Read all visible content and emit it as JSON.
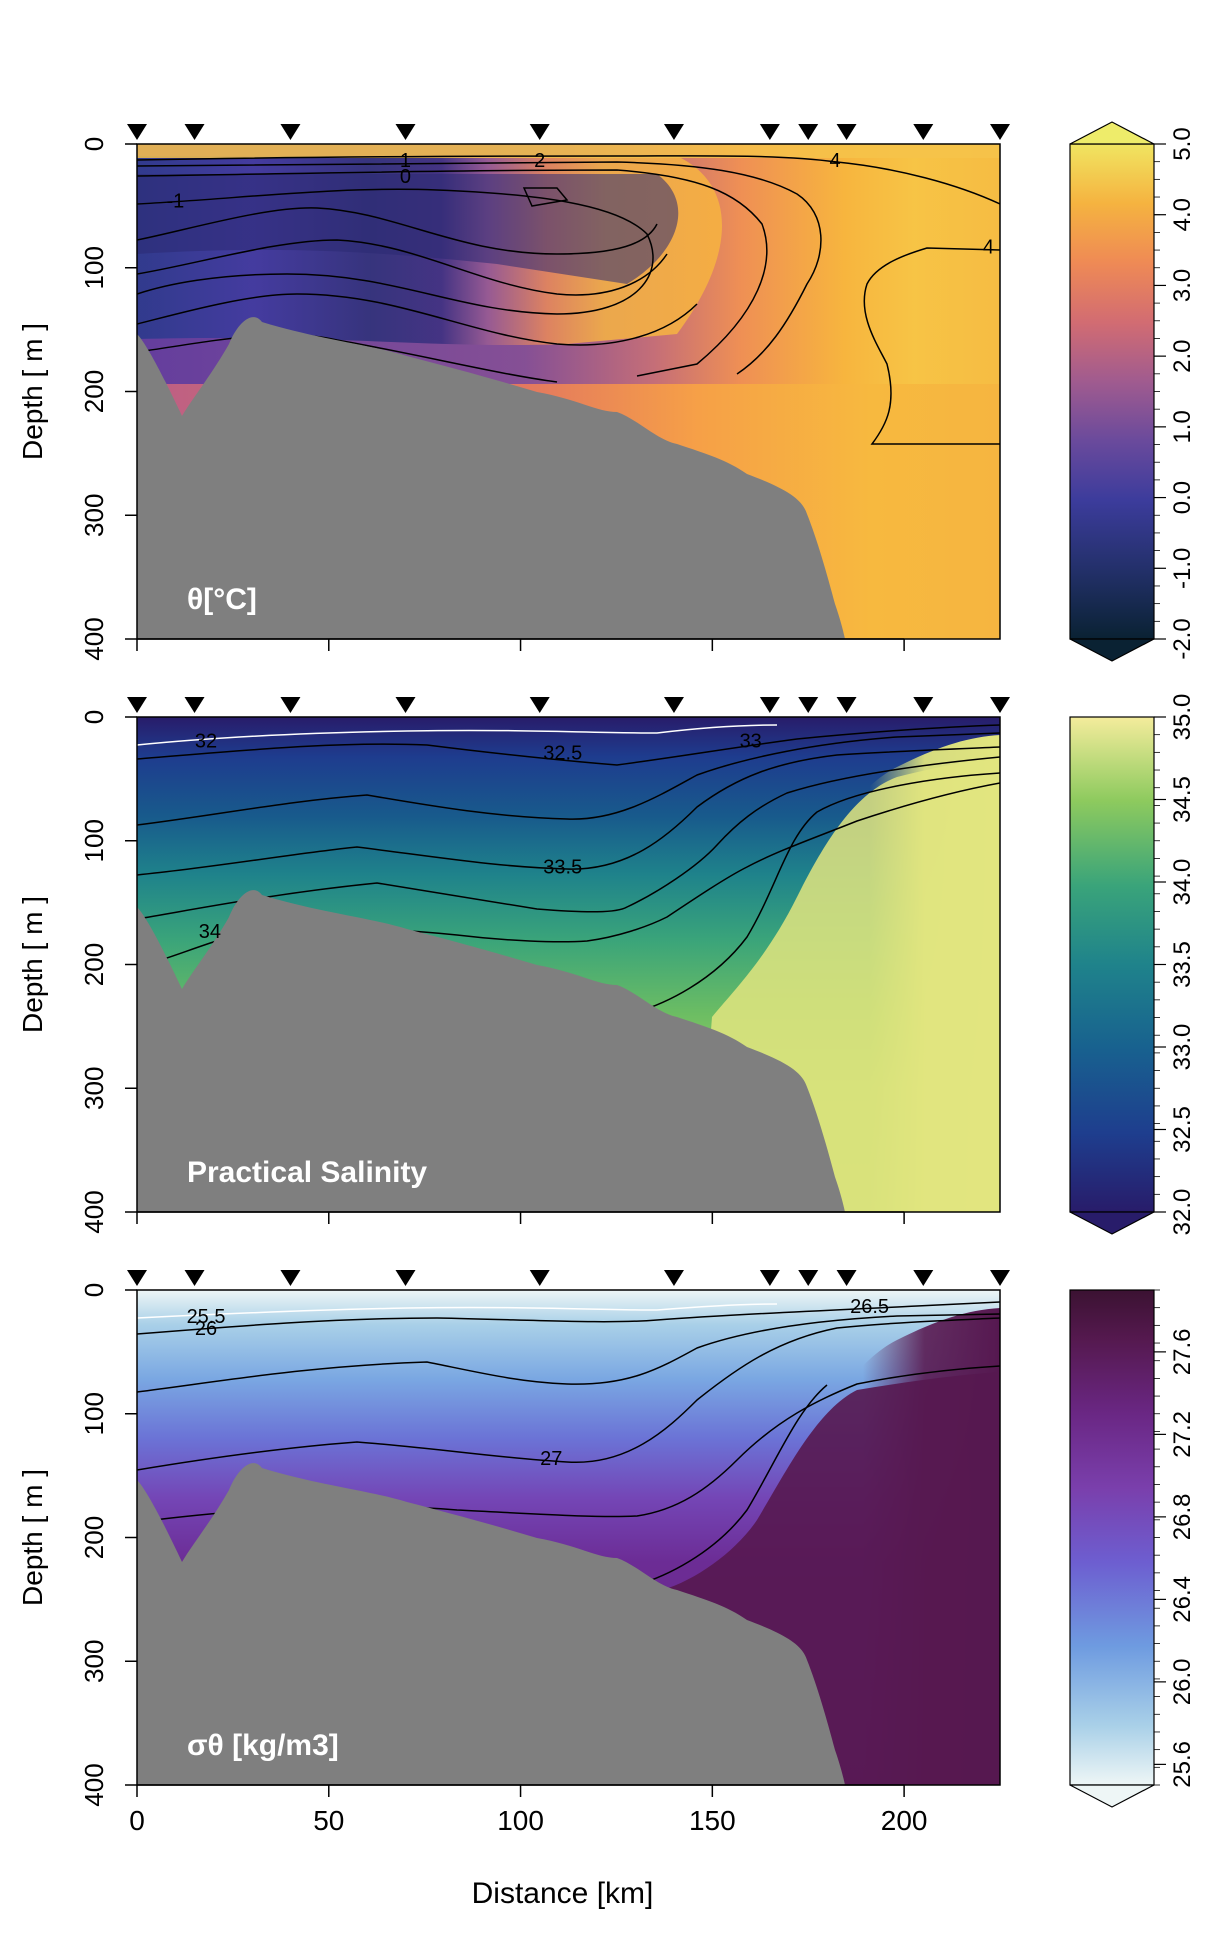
{
  "chart_data": [
    {
      "type": "heatmap",
      "panel_label": "θ[°C]",
      "ylabel": "Depth [ m ]",
      "xlim": [
        0,
        225
      ],
      "ylim": [
        400,
        0
      ],
      "yticks": [
        0,
        100,
        200,
        300,
        400
      ],
      "stations_km": [
        0,
        15,
        40,
        70,
        105,
        140,
        165,
        175,
        185,
        205,
        225
      ],
      "colorbar": {
        "min": -2.0,
        "max": 5.0,
        "ticks": [
          "-2.0",
          "-1.0",
          "0.0",
          "1.0",
          "2.0",
          "3.0",
          "4.0",
          "5.0"
        ],
        "extend": "both",
        "colors": [
          "#0a2233",
          "#2e3d8f",
          "#4b3aa6",
          "#7c4a9a",
          "#b96085",
          "#e5795d",
          "#f4a440",
          "#f3d24a",
          "#eeec6a"
        ]
      },
      "contour_labels": [
        {
          "text": "-1",
          "x": 10,
          "depth": 45
        },
        {
          "text": "0",
          "x": 70,
          "depth": 25
        },
        {
          "text": "1",
          "x": 70,
          "depth": 12
        },
        {
          "text": "2",
          "x": 105,
          "depth": 12
        },
        {
          "text": "4",
          "x": 182,
          "depth": 12
        },
        {
          "text": "4",
          "x": 222,
          "depth": 82
        }
      ]
    },
    {
      "type": "heatmap",
      "panel_label": "Practical Salinity",
      "ylabel": "Depth [ m ]",
      "xlim": [
        0,
        225
      ],
      "ylim": [
        400,
        0
      ],
      "yticks": [
        0,
        100,
        200,
        300,
        400
      ],
      "stations_km": [
        0,
        15,
        40,
        70,
        105,
        140,
        165,
        175,
        185,
        205,
        225
      ],
      "colorbar": {
        "min": 32.0,
        "max": 35.0,
        "ticks": [
          "32.0",
          "32.5",
          "33.0",
          "33.5",
          "34.0",
          "34.5",
          "35.0"
        ],
        "extend": "min",
        "colors": [
          "#281c6a",
          "#1e3c8e",
          "#18608f",
          "#1f838b",
          "#3aa47a",
          "#7cc35e",
          "#cbe07f",
          "#f4ec9c"
        ]
      },
      "contour_labels": [
        {
          "text": "32",
          "x": 18,
          "depth": 18
        },
        {
          "text": "32.5",
          "x": 111,
          "depth": 28
        },
        {
          "text": "33",
          "x": 160,
          "depth": 18
        },
        {
          "text": "33.5",
          "x": 111,
          "depth": 120
        },
        {
          "text": "34",
          "x": 19,
          "depth": 172
        }
      ]
    },
    {
      "type": "heatmap",
      "panel_label": "σθ [kg/m3]",
      "xlabel": "Distance [km]",
      "ylabel": "Depth [ m ]",
      "xlim": [
        0,
        225
      ],
      "xticks": [
        0,
        50,
        100,
        150,
        200
      ],
      "ylim": [
        400,
        0
      ],
      "yticks": [
        0,
        100,
        200,
        300,
        400
      ],
      "stations_km": [
        0,
        15,
        40,
        70,
        105,
        140,
        165,
        175,
        185,
        205,
        225
      ],
      "colorbar": {
        "min": 25.5,
        "max": 27.9,
        "ticks": [
          "25.6",
          "26.0",
          "26.4",
          "26.8",
          "27.2",
          "27.6"
        ],
        "extend": "min",
        "colors": [
          "#eef6f6",
          "#9cc7e6",
          "#6e9be0",
          "#6d5ed0",
          "#7a3fac",
          "#6a2784",
          "#55194f",
          "#3b1232"
        ]
      },
      "contour_labels": [
        {
          "text": "25.5",
          "x": 18,
          "depth": 20
        },
        {
          "text": "26",
          "x": 18,
          "depth": 30
        },
        {
          "text": "26.5",
          "x": 191,
          "depth": 12
        },
        {
          "text": "27",
          "x": 108,
          "depth": 135
        }
      ]
    }
  ],
  "icons": {
    "station_marker": "down-triangle-icon"
  },
  "colors": {
    "bathymetry": "#7f7f7f",
    "axis": "#000000"
  }
}
